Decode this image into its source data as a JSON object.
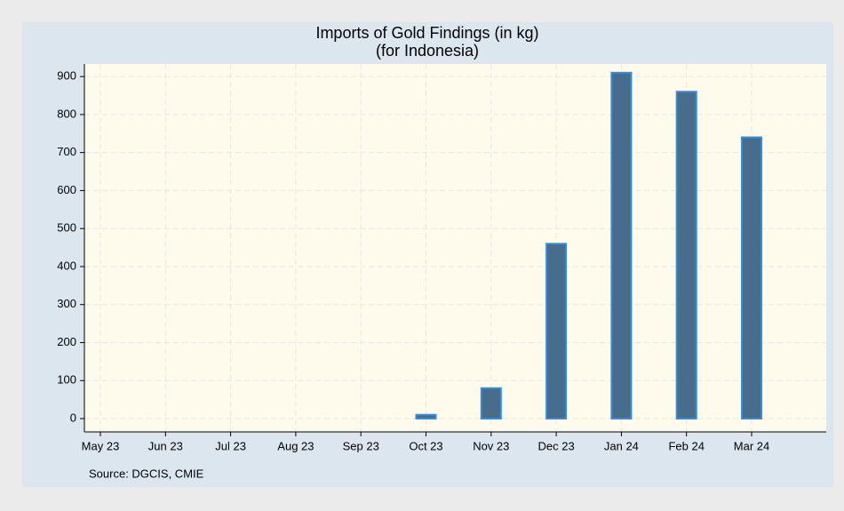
{
  "chart_data": {
    "type": "bar",
    "title": "Imports of Gold Findings (in kg)",
    "subtitle": "(for Indonesia)",
    "note": "Source: DGCIS, CMIE",
    "categories": [
      "May 23",
      "Jun 23",
      "Jul 23",
      "Aug 23",
      "Sep 23",
      "Oct 23",
      "Nov 23",
      "Dec 23",
      "Jan 24",
      "Feb 24",
      "Mar 24"
    ],
    "values": [
      null,
      null,
      null,
      null,
      null,
      10,
      80,
      460,
      910,
      860,
      740
    ],
    "color": "#486c8c",
    "edge_color": "#2f8de4",
    "ylim": [
      -35,
      933
    ],
    "yticks": [
      0,
      100,
      200,
      300,
      400,
      500,
      600,
      700,
      800,
      900
    ],
    "grid": true
  }
}
